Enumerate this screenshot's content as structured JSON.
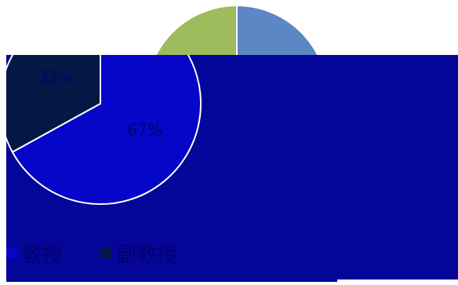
{
  "chart_data": [
    {
      "type": "pie",
      "title": "",
      "series": [
        {
          "values": [
            50,
            50
          ]
        }
      ],
      "colors": [
        "#5b87c4",
        "#9ebc5e"
      ]
    },
    {
      "type": "pie",
      "title": "",
      "categories": [
        "教授",
        "副教授"
      ],
      "values": [
        67,
        33
      ],
      "data_labels": [
        "67%",
        "33%"
      ],
      "colors": [
        "#0606c8",
        "#041846"
      ],
      "legend": "bottom-left"
    }
  ]
}
